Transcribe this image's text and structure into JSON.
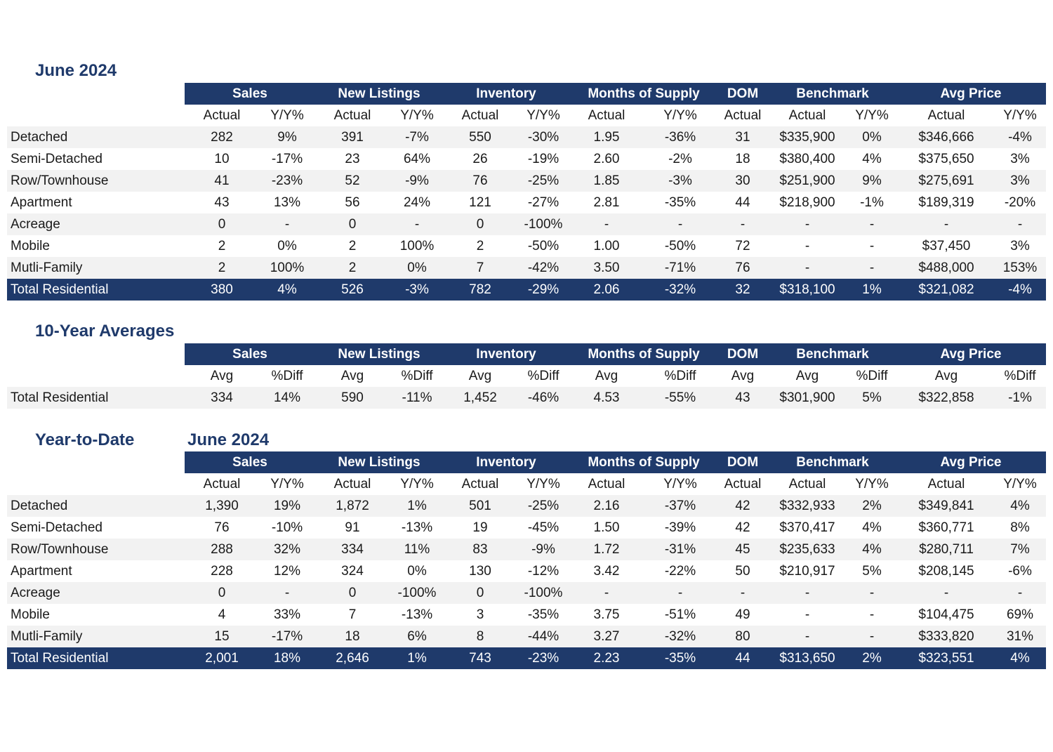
{
  "monthly": {
    "title": "June 2024",
    "groups": [
      "Sales",
      "New Listings",
      "Inventory",
      "Months of Supply",
      "DOM",
      "Benchmark",
      "Avg Price"
    ],
    "subheaders": [
      "Actual",
      "Y/Y%",
      "Actual",
      "Y/Y%",
      "Actual",
      "Y/Y%",
      "Actual",
      "Y/Y%",
      "Actual",
      "Actual",
      "Y/Y%",
      "Actual",
      "Y/Y%"
    ],
    "rows": [
      {
        "label": "Detached",
        "values": [
          "282",
          "9%",
          "391",
          "-7%",
          "550",
          "-30%",
          "1.95",
          "-36%",
          "31",
          "$335,900",
          "0%",
          "$346,666",
          "-4%"
        ]
      },
      {
        "label": "Semi-Detached",
        "values": [
          "10",
          "-17%",
          "23",
          "64%",
          "26",
          "-19%",
          "2.60",
          "-2%",
          "18",
          "$380,400",
          "4%",
          "$375,650",
          "3%"
        ]
      },
      {
        "label": "Row/Townhouse",
        "values": [
          "41",
          "-23%",
          "52",
          "-9%",
          "76",
          "-25%",
          "1.85",
          "-3%",
          "30",
          "$251,900",
          "9%",
          "$275,691",
          "3%"
        ]
      },
      {
        "label": "Apartment",
        "values": [
          "43",
          "13%",
          "56",
          "24%",
          "121",
          "-27%",
          "2.81",
          "-35%",
          "44",
          "$218,900",
          "-1%",
          "$189,319",
          "-20%"
        ]
      },
      {
        "label": "Acreage",
        "values": [
          "0",
          "-",
          "0",
          "-",
          "0",
          "-100%",
          "-",
          "-",
          "-",
          "-",
          "-",
          "-",
          "-"
        ]
      },
      {
        "label": "Mobile",
        "values": [
          "2",
          "0%",
          "2",
          "100%",
          "2",
          "-50%",
          "1.00",
          "-50%",
          "72",
          "-",
          "-",
          "$37,450",
          "3%"
        ]
      },
      {
        "label": "Mutli-Family",
        "values": [
          "2",
          "100%",
          "2",
          "0%",
          "7",
          "-42%",
          "3.50",
          "-71%",
          "76",
          "-",
          "-",
          "$488,000",
          "153%"
        ]
      }
    ],
    "total": {
      "label": "Total Residential",
      "values": [
        "380",
        "4%",
        "526",
        "-3%",
        "782",
        "-29%",
        "2.06",
        "-32%",
        "32",
        "$318,100",
        "1%",
        "$321,082",
        "-4%"
      ]
    }
  },
  "averages": {
    "title": "10-Year Averages",
    "groups": [
      "Sales",
      "New Listings",
      "Inventory",
      "Months of Supply",
      "DOM",
      "Benchmark",
      "Avg Price"
    ],
    "subheaders": [
      "Avg",
      "%Diff",
      "Avg",
      "%Diff",
      "Avg",
      "%Diff",
      "Avg",
      "%Diff",
      "Avg",
      "Avg",
      "%Diff",
      "Avg",
      "%Diff"
    ],
    "rows": [
      {
        "label": "Total Residential",
        "values": [
          "334",
          "14%",
          "590",
          "-11%",
          "1,452",
          "-46%",
          "4.53",
          "-55%",
          "43",
          "$301,900",
          "5%",
          "$322,858",
          "-1%"
        ]
      }
    ]
  },
  "ytd": {
    "title": "Year-to-Date",
    "subtitle": "June 2024",
    "groups": [
      "Sales",
      "New Listings",
      "Inventory",
      "Months of Supply",
      "DOM",
      "Benchmark",
      "Avg Price"
    ],
    "subheaders": [
      "Actual",
      "Y/Y%",
      "Actual",
      "Y/Y%",
      "Actual",
      "Y/Y%",
      "Actual",
      "Y/Y%",
      "Actual",
      "Actual",
      "Y/Y%",
      "Actual",
      "Y/Y%"
    ],
    "rows": [
      {
        "label": "Detached",
        "values": [
          "1,390",
          "19%",
          "1,872",
          "1%",
          "501",
          "-25%",
          "2.16",
          "-37%",
          "42",
          "$332,933",
          "2%",
          "$349,841",
          "4%"
        ]
      },
      {
        "label": "Semi-Detached",
        "values": [
          "76",
          "-10%",
          "91",
          "-13%",
          "19",
          "-45%",
          "1.50",
          "-39%",
          "42",
          "$370,417",
          "4%",
          "$360,771",
          "8%"
        ]
      },
      {
        "label": "Row/Townhouse",
        "values": [
          "288",
          "32%",
          "334",
          "11%",
          "83",
          "-9%",
          "1.72",
          "-31%",
          "45",
          "$235,633",
          "4%",
          "$280,711",
          "7%"
        ]
      },
      {
        "label": "Apartment",
        "values": [
          "228",
          "12%",
          "324",
          "0%",
          "130",
          "-12%",
          "3.42",
          "-22%",
          "50",
          "$210,917",
          "5%",
          "$208,145",
          "-6%"
        ]
      },
      {
        "label": "Acreage",
        "values": [
          "0",
          "-",
          "0",
          "-100%",
          "0",
          "-100%",
          "-",
          "-",
          "-",
          "-",
          "-",
          "-",
          "-"
        ]
      },
      {
        "label": "Mobile",
        "values": [
          "4",
          "33%",
          "7",
          "-13%",
          "3",
          "-35%",
          "3.75",
          "-51%",
          "49",
          "-",
          "-",
          "$104,475",
          "69%"
        ]
      },
      {
        "label": "Mutli-Family",
        "values": [
          "15",
          "-17%",
          "18",
          "6%",
          "8",
          "-44%",
          "3.27",
          "-32%",
          "80",
          "-",
          "-",
          "$333,820",
          "31%"
        ]
      }
    ],
    "total": {
      "label": "Total Residential",
      "values": [
        "2,001",
        "18%",
        "2,646",
        "1%",
        "743",
        "-23%",
        "2.23",
        "-35%",
        "44",
        "$313,650",
        "2%",
        "$323,551",
        "4%"
      ]
    }
  }
}
